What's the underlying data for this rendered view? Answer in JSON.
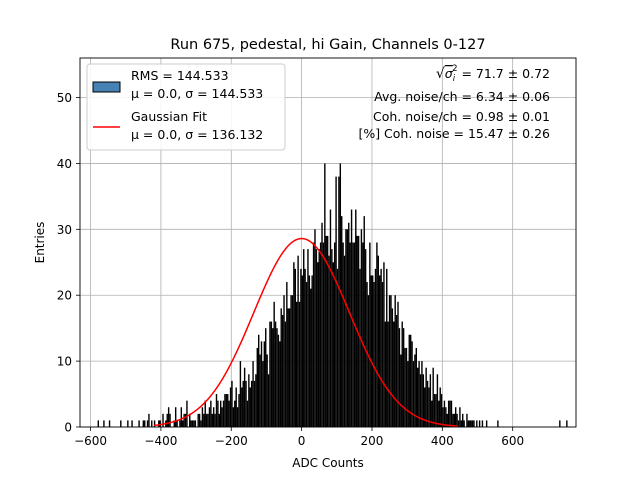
{
  "chart_data": {
    "type": "bar",
    "title": "Run 675, pedestal, hi Gain, Channels 0-127",
    "xlabel": "ADC Counts",
    "ylabel": "Entries",
    "xlim": [
      -630,
      780
    ],
    "ylim": [
      0,
      56
    ],
    "xticks": [
      -600,
      -400,
      -200,
      0,
      200,
      400,
      600
    ],
    "yticks": [
      0,
      10,
      20,
      30,
      40,
      50
    ],
    "grid": true,
    "legend_position": "top-left",
    "colors": {
      "histogram_fill": "#000000",
      "legend_patch": "#4682b4",
      "fit_line": "#ff0000",
      "grid": "#b0b0b0"
    },
    "series": [
      {
        "name": "RMS = 144.533",
        "name_line2": "μ = 0.0, σ = 144.533",
        "kind": "histogram",
        "stats": {
          "rms": 144.533,
          "mu": 0.0,
          "sigma": 144.533
        },
        "bin_width": 4,
        "x_start": -580,
        "x_end": 736,
        "counts": [
          1,
          0,
          0,
          0,
          1,
          0,
          0,
          0,
          1,
          0,
          0,
          0,
          0,
          0,
          0,
          0,
          1,
          0,
          0,
          0,
          0,
          1,
          0,
          0,
          1,
          0,
          0,
          0,
          0,
          1,
          0,
          0,
          1,
          1,
          0,
          1,
          2,
          0,
          1,
          0,
          1,
          0,
          0,
          1,
          1,
          0,
          2,
          0,
          1,
          2,
          3,
          2,
          0,
          0,
          1,
          3,
          1,
          0,
          1,
          3,
          1,
          2,
          2,
          4,
          0,
          2,
          1,
          1,
          1,
          1,
          0,
          2,
          2,
          1,
          3,
          2,
          4,
          2,
          2,
          3,
          4,
          2,
          3,
          2,
          5,
          4,
          2,
          4,
          3,
          4,
          5,
          5,
          5,
          4,
          6,
          7,
          3,
          4,
          6,
          3,
          5,
          10,
          6,
          7,
          9,
          7,
          4,
          8,
          6,
          7,
          10,
          7,
          8,
          12,
          14,
          11,
          13,
          10,
          13,
          15,
          11,
          8,
          16,
          16,
          15,
          19,
          16,
          15,
          14,
          13,
          18,
          17,
          20,
          16,
          22,
          18,
          18,
          20,
          20,
          25,
          24,
          19,
          26,
          19,
          24,
          23,
          27,
          24,
          22,
          27,
          23,
          21,
          23,
          28,
          30,
          27,
          25,
          27,
          28,
          31,
          28,
          40,
          29,
          29,
          26,
          33,
          27,
          25,
          28,
          38,
          24,
          38,
          40,
          32,
          28,
          26,
          30,
          30,
          31,
          28,
          33,
          28,
          28,
          33,
          29,
          29,
          24,
          30,
          28,
          32,
          27,
          22,
          20,
          28,
          23,
          23,
          22,
          24,
          28,
          26,
          23,
          24,
          22,
          25,
          16,
          24,
          16,
          20,
          20,
          18,
          16,
          20,
          17,
          19,
          15,
          11,
          16,
          15,
          12,
          12,
          10,
          14,
          14,
          13,
          10,
          11,
          12,
          9,
          10,
          8,
          10,
          8,
          6,
          9,
          7,
          6,
          8,
          4,
          9,
          5,
          5,
          8,
          4,
          6,
          5,
          3,
          4,
          3,
          2,
          4,
          4,
          4,
          2,
          2,
          3,
          2,
          1,
          3,
          1,
          2,
          1,
          0,
          2,
          1,
          1,
          1,
          1,
          1,
          0,
          1,
          0,
          1,
          0,
          1,
          0,
          0,
          1,
          0,
          0,
          0,
          0,
          0,
          0,
          0,
          1,
          0,
          0,
          0,
          0,
          0,
          0,
          0,
          0,
          0,
          0,
          0,
          0,
          0,
          0,
          0,
          0,
          0,
          0,
          0,
          0,
          0,
          0,
          0,
          0,
          0,
          0,
          0,
          0,
          0,
          0,
          0,
          0,
          0,
          0,
          0,
          0,
          0,
          0,
          0,
          0,
          0,
          0,
          0,
          1,
          0,
          0,
          0,
          0,
          1
        ]
      },
      {
        "name": "Gaussian Fit",
        "name_line2": "μ = 0.0, σ = 136.132",
        "kind": "line",
        "mu": 0.0,
        "sigma": 136.132,
        "peak": 28.6,
        "x_range": [
          -420,
          445
        ]
      }
    ],
    "annotations": [
      {
        "id": "sigma",
        "prefix": "√",
        "symbol": "σ",
        "subscript": "i",
        "superscript": "2",
        "text": " = 71.7 ± 0.72"
      },
      {
        "id": "avg",
        "text": "Avg. noise/ch = 6.34 ± 0.06"
      },
      {
        "id": "coh",
        "text": "Coh. noise/ch = 0.98 ± 0.01"
      },
      {
        "id": "pct",
        "text": "[%] Coh. noise = 15.47 ± 0.26"
      }
    ]
  }
}
